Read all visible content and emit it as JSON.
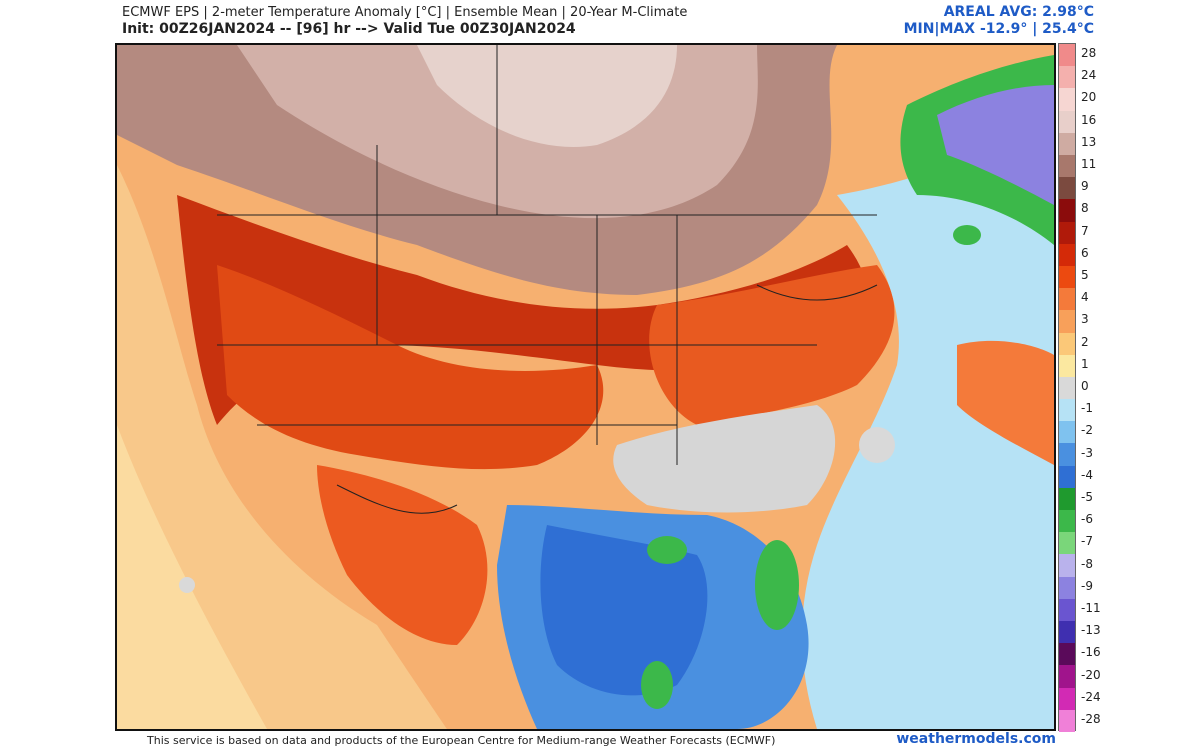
{
  "header": {
    "line1": "ECMWF EPS | 2-meter Temperature Anomaly [°C] | Ensemble Mean | 20-Year M-Climate",
    "line2": "Init: 00Z26JAN2024 -- [96] hr --> Valid Tue 00Z30JAN2024",
    "areal_avg": "AREAL AVG: 2.98°C",
    "minmax": "MIN|MAX -12.9° | 25.4°C"
  },
  "colorbar": {
    "labels": [
      "28",
      "24",
      "20",
      "16",
      "13",
      "11",
      "9",
      "8",
      "7",
      "6",
      "5",
      "4",
      "3",
      "2",
      "1",
      "0",
      "-1",
      "-2",
      "-3",
      "-4",
      "-5",
      "-6",
      "-7",
      "-8",
      "-9",
      "-11",
      "-13",
      "-16",
      "-20",
      "-24",
      "-28"
    ],
    "colors": [
      "#f08a8a",
      "#f4b0ad",
      "#f6d6d2",
      "#e8cfca",
      "#cfaba2",
      "#a8786c",
      "#7b4a3f",
      "#8b0c0c",
      "#b01a0a",
      "#d42a08",
      "#ec4a10",
      "#f47a3a",
      "#f8a05a",
      "#fbc878",
      "#fbe8a0",
      "#d9d9d9",
      "#b6e2f5",
      "#7fc2ef",
      "#4a90e0",
      "#2f6fd4",
      "#1f9a2e",
      "#3cb84a",
      "#7ad67a",
      "#b9b2ec",
      "#8c82e0",
      "#6a55d0",
      "#3f2fb0",
      "#5a0a5a",
      "#a0148c",
      "#d22ab4",
      "#f080d8"
    ]
  },
  "legend_colors": {
    "blue_text": "#1e5bc6"
  },
  "footer": {
    "credit": "This service is based on data and products of the European Centre for Medium-range Weather Forecasts (ECMWF)",
    "site": "weathermodels.com"
  }
}
